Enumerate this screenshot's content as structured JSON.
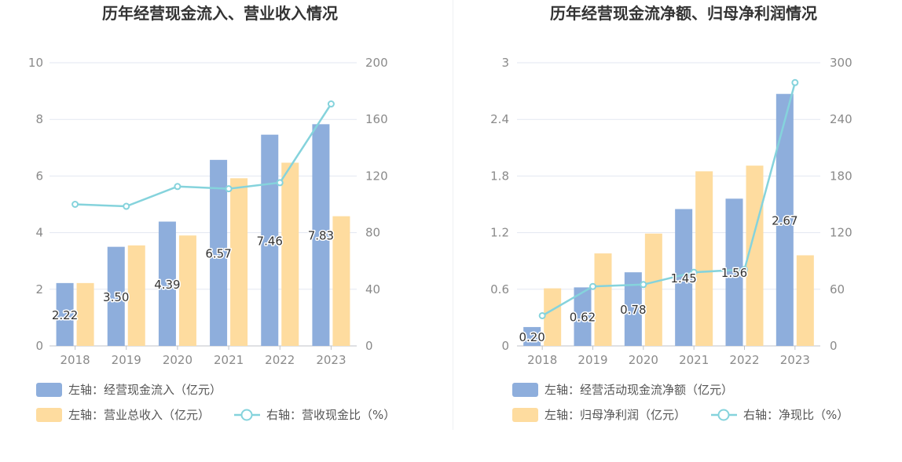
{
  "colors": {
    "blue": "#8eaedc",
    "orange": "#fedc9f",
    "cyan": "#85d3dc",
    "grid": "#e3e7f1",
    "axis": "#bfc3c9"
  },
  "chart_data": [
    {
      "type": "bar",
      "title": "历年经营现金流入、营业收入情况",
      "categories": [
        "2018",
        "2019",
        "2020",
        "2021",
        "2022",
        "2023"
      ],
      "left_axis": {
        "ylim": [
          0,
          10
        ],
        "ticks": [
          "0",
          "2",
          "4",
          "6",
          "8",
          "10"
        ]
      },
      "right_axis": {
        "ylim": [
          0,
          200
        ],
        "ticks": [
          "0",
          "40",
          "80",
          "120",
          "160",
          "200"
        ]
      },
      "series": [
        {
          "name": "左轴：经营现金流入（亿元）",
          "axis": "left",
          "kind": "bar",
          "color": "#8eaedc",
          "values": [
            2.22,
            3.5,
            4.39,
            6.57,
            7.46,
            7.83
          ],
          "labels": [
            "2.22",
            "3.50",
            "4.39",
            "6.57",
            "7.46",
            "7.83"
          ]
        },
        {
          "name": "左轴：营业总收入（亿元）",
          "axis": "left",
          "kind": "bar",
          "color": "#fedc9f",
          "values": [
            2.22,
            3.55,
            3.9,
            5.92,
            6.47,
            4.58
          ]
        },
        {
          "name": "右轴：营收现金比（%）",
          "axis": "right",
          "kind": "line",
          "color": "#85d3dc",
          "values": [
            100,
            98.6,
            112.6,
            111,
            115.3,
            170.9
          ]
        }
      ],
      "legend_placement": "bottom",
      "grid": true
    },
    {
      "type": "bar",
      "title": "历年经营现金流净额、归母净利润情况",
      "categories": [
        "2018",
        "2019",
        "2020",
        "2021",
        "2022",
        "2023"
      ],
      "left_axis": {
        "ylim": [
          0,
          3
        ],
        "ticks": [
          "0",
          "0.6",
          "1.2",
          "1.8",
          "2.4",
          "3"
        ]
      },
      "right_axis": {
        "ylim": [
          0,
          300
        ],
        "ticks": [
          "0",
          "60",
          "120",
          "180",
          "240",
          "300"
        ]
      },
      "series": [
        {
          "name": "左轴：经营活动现金流净额（亿元）",
          "axis": "left",
          "kind": "bar",
          "color": "#8eaedc",
          "values": [
            0.2,
            0.62,
            0.78,
            1.45,
            1.56,
            2.67
          ],
          "labels": [
            "0.20",
            "0.62",
            "0.78",
            "1.45",
            "1.56",
            "2.67"
          ]
        },
        {
          "name": "左轴：归母净利润（亿元）",
          "axis": "left",
          "kind": "bar",
          "color": "#fedc9f",
          "values": [
            0.61,
            0.98,
            1.19,
            1.85,
            1.91,
            0.96
          ]
        },
        {
          "name": "右轴：净现比（%）",
          "axis": "right",
          "kind": "line",
          "color": "#85d3dc",
          "values": [
            32,
            63,
            65,
            78,
            81,
            279
          ]
        }
      ],
      "legend_placement": "bottom",
      "grid": true
    }
  ]
}
